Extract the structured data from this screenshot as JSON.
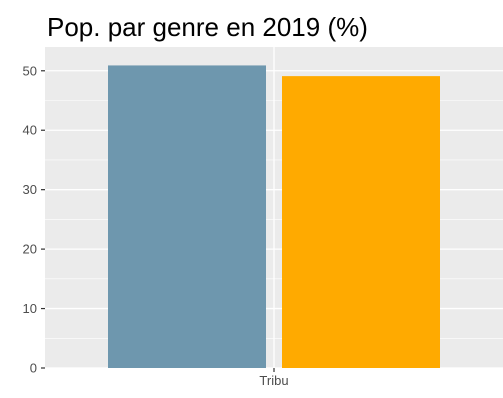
{
  "chart_data": {
    "type": "bar",
    "title": "Pop. par genre en 2019 (%)",
    "xlabel": "",
    "ylabel": "",
    "categories": [
      "Tribu"
    ],
    "series": [
      {
        "values": [
          50.9
        ],
        "color": "#6E97AE"
      },
      {
        "values": [
          49.1
        ],
        "color": "#FFAA00"
      }
    ],
    "ylim": [
      0,
      54
    ],
    "yticks": [
      0,
      10,
      20,
      30,
      40,
      50
    ],
    "grid": true,
    "panel_background": "#EBEBEB",
    "grid_color": "#FFFFFF",
    "legend": "none"
  }
}
